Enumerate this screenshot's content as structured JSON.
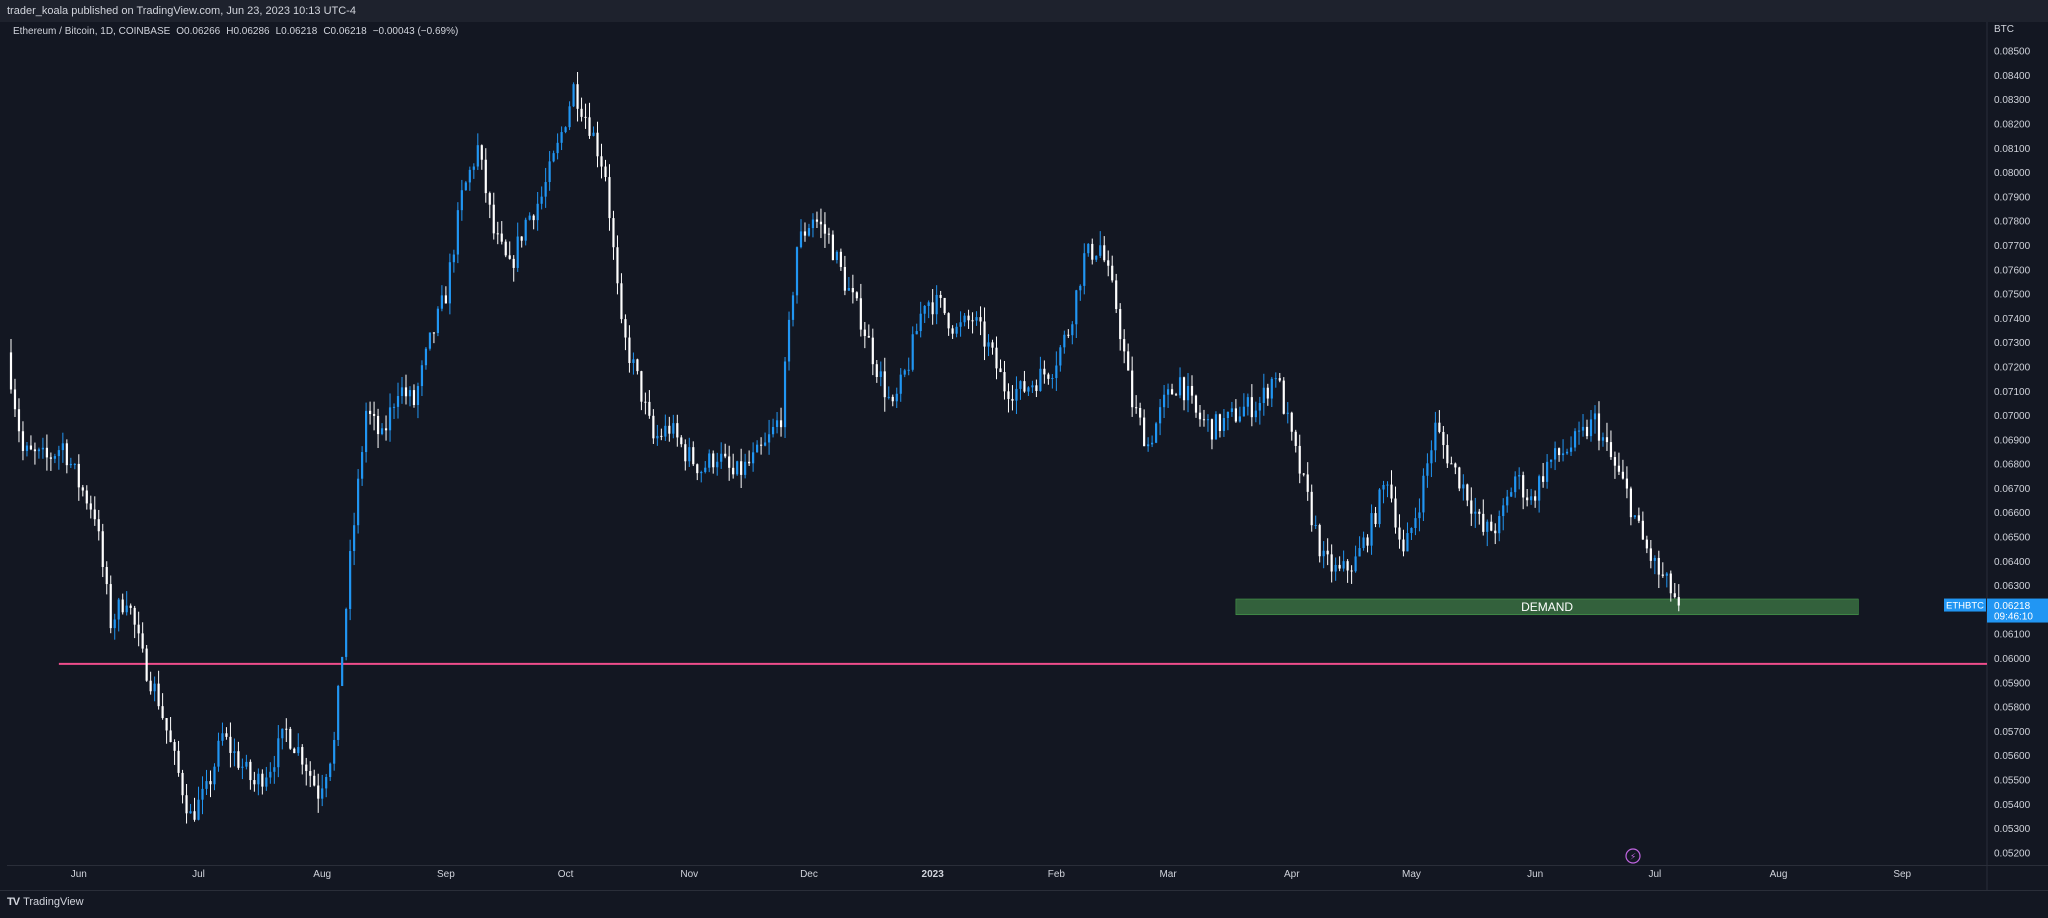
{
  "header": {
    "published_text": "trader_koala published on TradingView.com, Jun 23, 2023 10:13 UTC-4"
  },
  "symbol": {
    "name": "Ethereum / Bitcoin, 1D, COINBASE",
    "open": "O0.06266",
    "high": "H0.06286",
    "low": "L0.06218",
    "close": "C0.06218",
    "change": "−0.00043 (−0.69%)"
  },
  "footer": {
    "brand": "TradingView"
  },
  "chart_data": {
    "type": "candlestick",
    "currency_label": "BTC",
    "y_range": [
      0.0515,
      0.0862
    ],
    "y_ticks": [
      "0.08500",
      "0.08400",
      "0.08300",
      "0.08200",
      "0.08100",
      "0.08000",
      "0.07900",
      "0.07800",
      "0.07700",
      "0.07600",
      "0.07500",
      "0.07400",
      "0.07300",
      "0.07200",
      "0.07100",
      "0.07000",
      "0.06900",
      "0.06800",
      "0.06700",
      "0.06600",
      "0.06500",
      "0.06400",
      "0.06300",
      "0.06100",
      "0.06000",
      "0.05900",
      "0.05800",
      "0.05700",
      "0.05600",
      "0.05500",
      "0.05400",
      "0.05300",
      "0.05200"
    ],
    "x_ticks": [
      "Jun",
      "Jul",
      "Aug",
      "Sep",
      "Oct",
      "Nov",
      "Dec",
      "2023",
      "Feb",
      "Mar",
      "Apr",
      "May",
      "Jun",
      "Jul",
      "Aug",
      "Sep"
    ],
    "x_tick_dates": [
      "2022-06-01",
      "2022-07-01",
      "2022-08-01",
      "2022-09-01",
      "2022-10-01",
      "2022-11-01",
      "2022-12-01",
      "2023-01-01",
      "2023-02-01",
      "2023-03-01",
      "2023-04-01",
      "2023-05-01",
      "2023-06-01",
      "2023-07-01",
      "2023-08-01",
      "2023-09-01"
    ],
    "x_range": [
      "2022-05-14",
      "2023-09-22"
    ],
    "price_path": [
      [
        "2022-05-14",
        0.0726
      ],
      [
        "2022-05-18",
        0.0685
      ],
      [
        "2022-05-24",
        0.0682
      ],
      [
        "2022-05-28",
        0.0688
      ],
      [
        "2022-06-01",
        0.0672
      ],
      [
        "2022-06-05",
        0.066
      ],
      [
        "2022-06-09",
        0.0615
      ],
      [
        "2022-06-13",
        0.0626
      ],
      [
        "2022-06-17",
        0.06
      ],
      [
        "2022-06-21",
        0.0583
      ],
      [
        "2022-06-25",
        0.0558
      ],
      [
        "2022-06-29",
        0.0535
      ],
      [
        "2022-07-03",
        0.0545
      ],
      [
        "2022-07-07",
        0.0568
      ],
      [
        "2022-07-11",
        0.0558
      ],
      [
        "2022-07-15",
        0.0548
      ],
      [
        "2022-07-19",
        0.0556
      ],
      [
        "2022-07-23",
        0.057
      ],
      [
        "2022-07-27",
        0.056
      ],
      [
        "2022-07-31",
        0.0545
      ],
      [
        "2022-08-04",
        0.0565
      ],
      [
        "2022-08-08",
        0.064
      ],
      [
        "2022-08-12",
        0.0702
      ],
      [
        "2022-08-16",
        0.069
      ],
      [
        "2022-08-20",
        0.0712
      ],
      [
        "2022-08-24",
        0.0705
      ],
      [
        "2022-08-28",
        0.073
      ],
      [
        "2022-09-01",
        0.075
      ],
      [
        "2022-09-05",
        0.079
      ],
      [
        "2022-09-09",
        0.081
      ],
      [
        "2022-09-13",
        0.0775
      ],
      [
        "2022-09-17",
        0.076
      ],
      [
        "2022-09-21",
        0.078
      ],
      [
        "2022-09-25",
        0.079
      ],
      [
        "2022-09-29",
        0.081
      ],
      [
        "2022-10-03",
        0.0835
      ],
      [
        "2022-10-07",
        0.082
      ],
      [
        "2022-10-11",
        0.08
      ],
      [
        "2022-10-15",
        0.0735
      ],
      [
        "2022-10-19",
        0.0715
      ],
      [
        "2022-10-23",
        0.069
      ],
      [
        "2022-10-27",
        0.0695
      ],
      [
        "2022-10-31",
        0.0685
      ],
      [
        "2022-11-04",
        0.0678
      ],
      [
        "2022-11-08",
        0.0684
      ],
      [
        "2022-11-12",
        0.0675
      ],
      [
        "2022-11-16",
        0.068
      ],
      [
        "2022-11-20",
        0.0687
      ],
      [
        "2022-11-24",
        0.07
      ],
      [
        "2022-11-28",
        0.077
      ],
      [
        "2022-12-02",
        0.0782
      ],
      [
        "2022-12-06",
        0.0773
      ],
      [
        "2022-12-10",
        0.0755
      ],
      [
        "2022-12-14",
        0.074
      ],
      [
        "2022-12-18",
        0.072
      ],
      [
        "2022-12-22",
        0.0702
      ],
      [
        "2022-12-26",
        0.0722
      ],
      [
        "2022-12-30",
        0.0748
      ],
      [
        "2023-01-03",
        0.0745
      ],
      [
        "2023-01-07",
        0.0735
      ],
      [
        "2023-01-11",
        0.074
      ],
      [
        "2023-01-15",
        0.0728
      ],
      [
        "2023-01-19",
        0.0712
      ],
      [
        "2023-01-23",
        0.071
      ],
      [
        "2023-01-27",
        0.0715
      ],
      [
        "2023-01-31",
        0.072
      ],
      [
        "2023-02-04",
        0.0735
      ],
      [
        "2023-02-08",
        0.0765
      ],
      [
        "2023-02-12",
        0.077
      ],
      [
        "2023-02-16",
        0.0745
      ],
      [
        "2023-02-20",
        0.0705
      ],
      [
        "2023-02-24",
        0.0688
      ],
      [
        "2023-02-28",
        0.0705
      ],
      [
        "2023-03-04",
        0.0715
      ],
      [
        "2023-03-08",
        0.07
      ],
      [
        "2023-03-12",
        0.0695
      ],
      [
        "2023-03-16",
        0.0698
      ],
      [
        "2023-03-20",
        0.0703
      ],
      [
        "2023-03-24",
        0.0705
      ],
      [
        "2023-03-28",
        0.0718
      ],
      [
        "2023-04-01",
        0.069
      ],
      [
        "2023-04-05",
        0.0665
      ],
      [
        "2023-04-09",
        0.064
      ],
      [
        "2023-04-13",
        0.0635
      ],
      [
        "2023-04-17",
        0.064
      ],
      [
        "2023-04-21",
        0.0655
      ],
      [
        "2023-04-25",
        0.0675
      ],
      [
        "2023-04-29",
        0.0642
      ],
      [
        "2023-05-03",
        0.0665
      ],
      [
        "2023-05-07",
        0.0695
      ],
      [
        "2023-05-11",
        0.068
      ],
      [
        "2023-05-15",
        0.0668
      ],
      [
        "2023-05-19",
        0.0652
      ],
      [
        "2023-05-23",
        0.0655
      ],
      [
        "2023-05-27",
        0.0675
      ],
      [
        "2023-05-31",
        0.0665
      ],
      [
        "2023-06-04",
        0.068
      ],
      [
        "2023-06-08",
        0.0685
      ],
      [
        "2023-06-12",
        0.069
      ],
      [
        "2023-06-16",
        0.0698
      ],
      [
        "2023-06-20",
        0.0682
      ],
      [
        "2023-06-24",
        0.0668
      ],
      [
        "2023-06-28",
        0.0648
      ],
      [
        "2023-07-02",
        0.0635
      ],
      [
        "2023-07-05",
        0.0628
      ],
      [
        "2023-07-07",
        0.06218
      ]
    ],
    "demand_zone": {
      "label": "DEMAND",
      "from": "2023-03-18",
      "to": "2023-08-21",
      "top": 0.06245,
      "bottom": 0.0618,
      "color": "#33613c"
    },
    "support_line": {
      "value": 0.05978,
      "color": "#ef4d8c"
    },
    "last_price": {
      "ticker": "ETHBTC",
      "price": "0.06218",
      "countdown": "09:46:10",
      "color": "#2196f3"
    },
    "colors": {
      "up": "#2196f3",
      "down": "#ffffff",
      "background": "#131722",
      "axis_text": "#d1d4dc"
    },
    "grid": false
  }
}
